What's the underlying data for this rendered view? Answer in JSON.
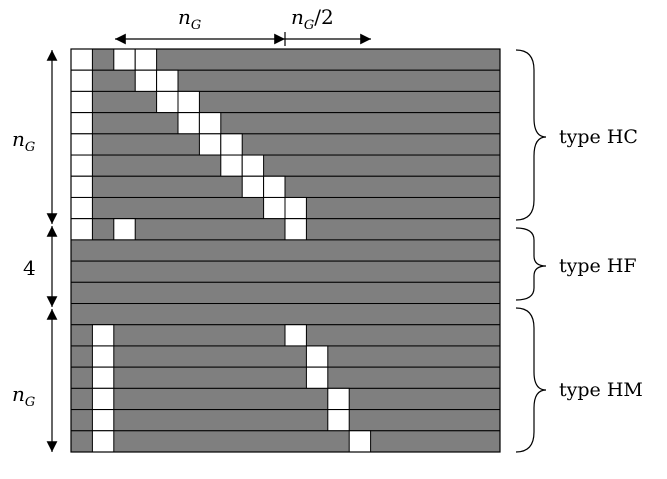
{
  "top_labels": {
    "n_var": "n",
    "n_sub": "G",
    "half_var": "n",
    "half_sub": "G",
    "half_suffix": "/2"
  },
  "left_labels": {
    "hc_var": "n",
    "hc_sub": "G",
    "hf_count": "4",
    "hm_var": "n",
    "hm_sub": "G"
  },
  "types": {
    "hc": "type HC",
    "hf": "type HF",
    "hm": "type HM"
  },
  "colors": {
    "gray": "#7f7f7f",
    "white": "#ffffff",
    "line": "#000000"
  }
}
